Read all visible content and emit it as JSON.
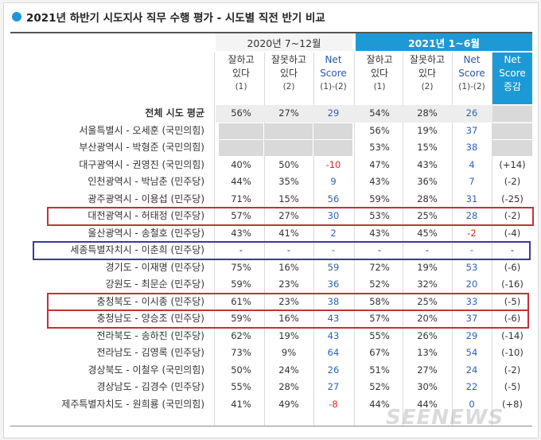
{
  "title": "2021년 하반기 시도지사 직무 수행 평가 - 시도별 직전 반기 비교",
  "period_2020": "2020년 7~12월",
  "period_2021": "2021년 1~6월",
  "headers": {
    "good": [
      "잘하고",
      "있다",
      "(1)"
    ],
    "bad": [
      "잘못하고",
      "있다",
      "(2)"
    ],
    "net": [
      "Net",
      "Score",
      "(1)-(2)"
    ],
    "change": [
      "Net",
      "Score",
      "증감"
    ]
  },
  "rows": [
    {
      "label": "전체 시도 평균",
      "g20": "56%",
      "b20": "27%",
      "n20": "29",
      "g21": "54%",
      "b21": "28%",
      "n21": "26",
      "chg": ""
    },
    {
      "label": "서울특별시 - 오세훈 (국민의힘)",
      "g20": "",
      "b20": "",
      "n20": "",
      "g21": "56%",
      "b21": "19%",
      "n21": "37",
      "chg": ""
    },
    {
      "label": "부산광역시 - 박형준 (국민의힘)",
      "g20": "",
      "b20": "",
      "n20": "",
      "g21": "53%",
      "b21": "15%",
      "n21": "38",
      "chg": ""
    },
    {
      "label": "대구광역시 - 권영진 (국민의힘)",
      "g20": "40%",
      "b20": "50%",
      "n20": "-10",
      "g21": "47%",
      "b21": "43%",
      "n21": "4",
      "chg": "(+14)"
    },
    {
      "label": "인천광역시 - 박남춘 (민주당)",
      "g20": "44%",
      "b20": "35%",
      "n20": "9",
      "g21": "43%",
      "b21": "36%",
      "n21": "7",
      "chg": "(-2)"
    },
    {
      "label": "광주광역시 - 이용섭 (민주당)",
      "g20": "71%",
      "b20": "15%",
      "n20": "56",
      "g21": "59%",
      "b21": "28%",
      "n21": "31",
      "chg": "(-25)"
    },
    {
      "label": "대전광역시 - 허태정 (민주당)",
      "g20": "57%",
      "b20": "27%",
      "n20": "30",
      "g21": "53%",
      "b21": "25%",
      "n21": "28",
      "chg": "(-2)"
    },
    {
      "label": "울산광역시 - 송철호 (민주당)",
      "g20": "43%",
      "b20": "41%",
      "n20": "2",
      "g21": "43%",
      "b21": "45%",
      "n21": "-2",
      "chg": "(-4)"
    },
    {
      "label": "세종특별자치시 - 이춘희 (민주당)",
      "g20": "-",
      "b20": "-",
      "n20": "-",
      "g21": "-",
      "b21": "-",
      "n21": "-",
      "chg": "-"
    },
    {
      "label": "경기도 - 이재명 (민주당)",
      "g20": "75%",
      "b20": "16%",
      "n20": "59",
      "g21": "72%",
      "b21": "19%",
      "n21": "53",
      "chg": "(-6)"
    },
    {
      "label": "강원도 - 최문순 (민주당)",
      "g20": "59%",
      "b20": "23%",
      "n20": "36",
      "g21": "52%",
      "b21": "32%",
      "n21": "20",
      "chg": "(-16)"
    },
    {
      "label": "충청북도 - 이시종 (민주당)",
      "g20": "61%",
      "b20": "23%",
      "n20": "38",
      "g21": "58%",
      "b21": "25%",
      "n21": "33",
      "chg": "(-5)"
    },
    {
      "label": "충청남도 - 양승조 (민주당)",
      "g20": "59%",
      "b20": "16%",
      "n20": "43",
      "g21": "57%",
      "b21": "20%",
      "n21": "37",
      "chg": "(-6)"
    },
    {
      "label": "전라북도 - 송하진 (민주당)",
      "g20": "62%",
      "b20": "19%",
      "n20": "43",
      "g21": "55%",
      "b21": "26%",
      "n21": "29",
      "chg": "(-14)"
    },
    {
      "label": "전라남도 - 김영록 (민주당)",
      "g20": "73%",
      "b20": "9%",
      "n20": "64",
      "g21": "67%",
      "b21": "13%",
      "n21": "54",
      "chg": "(-10)"
    },
    {
      "label": "경상북도 - 이철우 (국민의힘)",
      "g20": "50%",
      "b20": "24%",
      "n20": "26",
      "g21": "51%",
      "b21": "27%",
      "n21": "24",
      "chg": "(-2)"
    },
    {
      "label": "경상남도 - 김경수 (민주당)",
      "g20": "55%",
      "b20": "28%",
      "n20": "27",
      "g21": "52%",
      "b21": "30%",
      "n21": "22",
      "chg": "(-5)"
    },
    {
      "label": "제주특별자치도 - 원희룡 (국민의힘)",
      "g20": "41%",
      "b20": "49%",
      "n20": "-8",
      "g21": "44%",
      "b21": "44%",
      "n21": "0",
      "chg": "(+8)"
    }
  ],
  "highlight_red_rows": [
    6,
    11,
    12
  ],
  "highlight_blue_rows": [
    8
  ],
  "watermark": "SEENEWS",
  "colors": {
    "accent": "#1d9ad6",
    "negative": "#e0242a",
    "net": "#2d63b8",
    "red_box": "#c5303a",
    "blue_box": "#3a3a9e"
  }
}
